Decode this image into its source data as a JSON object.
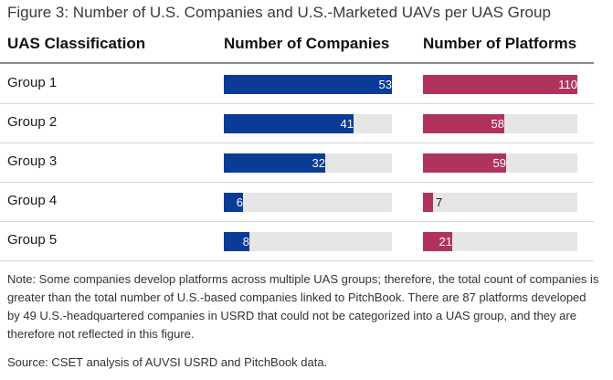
{
  "figure_title": "Figure 3: Number of U.S. Companies and U.S.-Marketed UAVs per UAS Group",
  "headers": {
    "classification": "UAS Classification",
    "companies": "Number of Companies",
    "platforms": "Number of Platforms"
  },
  "colors": {
    "companies_bar": "#0a3b96",
    "platforms_bar": "#b0335f",
    "track": "#e6e6e6"
  },
  "chart_data": [
    {
      "type": "bar",
      "orientation": "horizontal",
      "title": "Number of Companies",
      "categories": [
        "Group 1",
        "Group 2",
        "Group 3",
        "Group 4",
        "Group 5"
      ],
      "values": [
        53,
        41,
        32,
        6,
        8
      ],
      "xlim": [
        0,
        53
      ],
      "grid": false
    },
    {
      "type": "bar",
      "orientation": "horizontal",
      "title": "Number of Platforms",
      "categories": [
        "Group 1",
        "Group 2",
        "Group 3",
        "Group 4",
        "Group 5"
      ],
      "values": [
        110,
        58,
        59,
        7,
        21
      ],
      "xlim": [
        0,
        110
      ],
      "grid": false
    }
  ],
  "note": "Note: Some companies develop platforms across multiple UAS groups; therefore, the total count of companies is greater than the total number of U.S.-based companies linked to PitchBook. There are 87 platforms developed by 49 U.S.-headquartered companies in USRD that could not be categorized into a UAS group, and they are therefore not reflected in this figure.",
  "source": "Source: CSET analysis of AUVSI USRD and PitchBook data."
}
